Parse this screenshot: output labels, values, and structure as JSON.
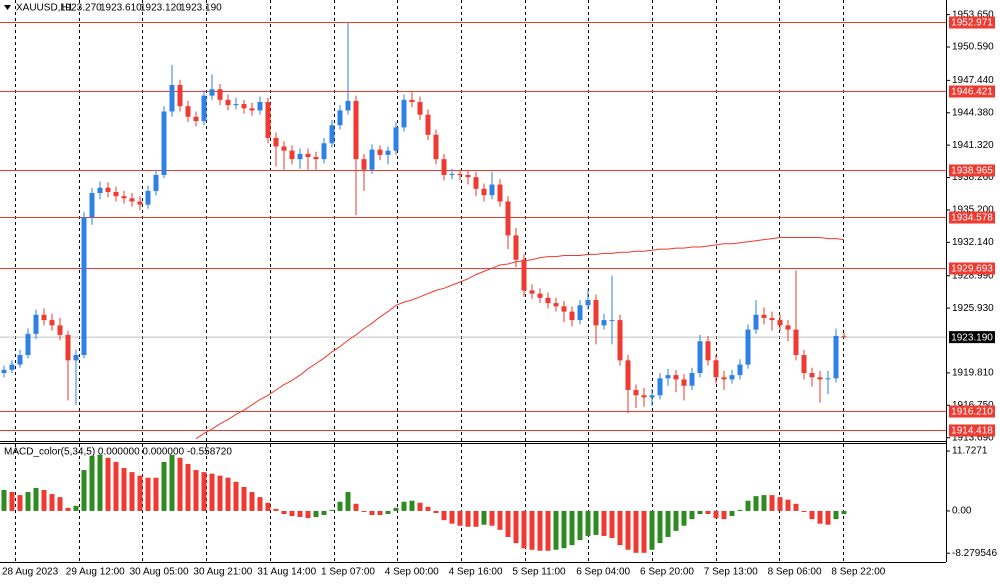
{
  "chart_data": [
    {
      "type": "candlestick",
      "header_symbol": "XAUUSD,H1",
      "header_values": [
        "1923.270",
        "1923.610",
        "1923.120",
        "1923.190"
      ],
      "up_color": "#2f80e4",
      "down_color": "#ee3a30",
      "candles": [
        [
          1919.8,
          1920.5,
          1919.4,
          1920.1
        ],
        [
          1920.1,
          1921.0,
          1919.8,
          1920.6
        ],
        [
          1920.6,
          1922.0,
          1920.3,
          1921.5
        ],
        [
          1921.5,
          1924.0,
          1921.2,
          1923.5
        ],
        [
          1923.5,
          1925.8,
          1923.0,
          1925.3
        ],
        [
          1925.3,
          1925.9,
          1924.3,
          1924.8
        ],
        [
          1924.8,
          1925.4,
          1923.8,
          1924.3
        ],
        [
          1924.3,
          1925.0,
          1922.9,
          1923.4
        ],
        [
          1923.4,
          1923.8,
          1917.2,
          1921.0
        ],
        [
          1921.0,
          1922.0,
          1916.8,
          1921.5
        ],
        [
          1921.5,
          1935.0,
          1921.2,
          1934.5
        ],
        [
          1934.5,
          1937.3,
          1933.8,
          1936.8
        ],
        [
          1936.8,
          1937.9,
          1936.2,
          1937.3
        ],
        [
          1937.3,
          1937.8,
          1936.4,
          1936.9
        ],
        [
          1936.9,
          1937.4,
          1936.0,
          1936.5
        ],
        [
          1936.5,
          1937.0,
          1935.8,
          1936.3
        ],
        [
          1936.3,
          1936.8,
          1935.5,
          1936.0
        ],
        [
          1936.0,
          1936.5,
          1935.2,
          1935.7
        ],
        [
          1935.7,
          1937.5,
          1935.3,
          1937.0
        ],
        [
          1937.0,
          1939.0,
          1936.6,
          1938.5
        ],
        [
          1938.5,
          1945.0,
          1938.2,
          1944.5
        ],
        [
          1944.5,
          1948.9,
          1944.0,
          1947.0
        ],
        [
          1947.0,
          1947.5,
          1944.5,
          1945.0
        ],
        [
          1945.0,
          1945.5,
          1943.5,
          1944.0
        ],
        [
          1944.0,
          1944.5,
          1943.1,
          1943.6
        ],
        [
          1943.6,
          1946.5,
          1943.2,
          1946.0
        ],
        [
          1946.0,
          1948.0,
          1945.6,
          1946.6
        ],
        [
          1946.6,
          1947.1,
          1945.1,
          1945.6
        ],
        [
          1945.6,
          1946.1,
          1944.6,
          1945.1
        ],
        [
          1945.1,
          1945.8,
          1944.7,
          1945.2
        ],
        [
          1945.2,
          1945.6,
          1944.3,
          1944.8
        ],
        [
          1944.8,
          1945.3,
          1944.1,
          1944.6
        ],
        [
          1944.6,
          1945.9,
          1944.2,
          1945.4
        ],
        [
          1945.4,
          1945.8,
          1941.5,
          1942.0
        ],
        [
          1942.0,
          1942.5,
          1939.3,
          1941.2
        ],
        [
          1941.2,
          1941.7,
          1939.0,
          1940.8
        ],
        [
          1940.8,
          1941.3,
          1939.5,
          1940.0
        ],
        [
          1940.0,
          1941.0,
          1939.1,
          1940.5
        ],
        [
          1940.5,
          1941.0,
          1939.0,
          1940.2
        ],
        [
          1940.2,
          1940.7,
          1939.0,
          1940.0
        ],
        [
          1940.0,
          1942.0,
          1939.6,
          1941.5
        ],
        [
          1941.5,
          1943.7,
          1941.1,
          1943.2
        ],
        [
          1943.2,
          1945.1,
          1942.8,
          1944.6
        ],
        [
          1944.6,
          1952.9,
          1944.2,
          1945.5
        ],
        [
          1945.5,
          1946.0,
          1934.7,
          1940.0
        ],
        [
          1940.0,
          1940.5,
          1937.0,
          1939.0
        ],
        [
          1939.0,
          1941.4,
          1938.6,
          1940.9
        ],
        [
          1940.9,
          1941.3,
          1939.9,
          1940.4
        ],
        [
          1940.4,
          1941.2,
          1939.5,
          1940.8
        ],
        [
          1940.8,
          1943.5,
          1940.4,
          1943.0
        ],
        [
          1943.0,
          1946.1,
          1942.6,
          1945.6
        ],
        [
          1945.6,
          1946.3,
          1944.9,
          1945.4
        ],
        [
          1945.4,
          1945.9,
          1943.7,
          1944.2
        ],
        [
          1944.2,
          1944.7,
          1941.8,
          1942.3
        ],
        [
          1942.3,
          1942.8,
          1939.5,
          1940.0
        ],
        [
          1940.0,
          1940.5,
          1938.0,
          1938.5
        ],
        [
          1938.5,
          1939.1,
          1938.1,
          1938.6
        ],
        [
          1938.6,
          1939.0,
          1938.0,
          1938.5
        ],
        [
          1938.5,
          1939.0,
          1937.6,
          1938.3
        ],
        [
          1938.3,
          1938.8,
          1936.5,
          1937.2
        ],
        [
          1937.2,
          1937.7,
          1936.0,
          1936.6
        ],
        [
          1936.6,
          1938.8,
          1936.2,
          1937.6
        ],
        [
          1937.6,
          1938.1,
          1935.5,
          1936.0
        ],
        [
          1936.0,
          1936.5,
          1931.5,
          1932.8
        ],
        [
          1932.8,
          1933.5,
          1929.8,
          1930.5
        ],
        [
          1930.5,
          1931.0,
          1927.0,
          1927.6
        ],
        [
          1927.6,
          1928.2,
          1926.8,
          1927.3
        ],
        [
          1927.3,
          1927.8,
          1926.4,
          1926.9
        ],
        [
          1926.9,
          1927.4,
          1925.9,
          1926.4
        ],
        [
          1926.4,
          1926.9,
          1925.6,
          1926.1
        ],
        [
          1926.1,
          1926.6,
          1924.6,
          1925.6
        ],
        [
          1925.6,
          1926.1,
          1924.2,
          1924.8
        ],
        [
          1924.8,
          1926.7,
          1924.4,
          1926.2
        ],
        [
          1926.2,
          1927.6,
          1925.8,
          1926.7
        ],
        [
          1926.7,
          1927.2,
          1922.5,
          1924.3
        ],
        [
          1924.3,
          1925.4,
          1923.9,
          1924.8
        ],
        [
          1924.8,
          1929.0,
          1922.5,
          1924.8
        ],
        [
          1924.8,
          1925.3,
          1920.5,
          1921.0
        ],
        [
          1921.0,
          1921.5,
          1916.0,
          1918.2
        ],
        [
          1918.2,
          1918.7,
          1916.5,
          1917.7
        ],
        [
          1917.7,
          1918.4,
          1916.6,
          1917.5
        ],
        [
          1917.5,
          1918.3,
          1916.7,
          1917.7
        ],
        [
          1917.7,
          1919.8,
          1917.3,
          1919.3
        ],
        [
          1919.3,
          1920.2,
          1918.6,
          1919.6
        ],
        [
          1919.6,
          1920.1,
          1918.0,
          1919.2
        ],
        [
          1919.2,
          1919.7,
          1917.2,
          1918.6
        ],
        [
          1918.6,
          1920.3,
          1918.2,
          1919.8
        ],
        [
          1919.8,
          1923.4,
          1919.4,
          1922.8
        ],
        [
          1922.8,
          1923.3,
          1920.5,
          1921.0
        ],
        [
          1921.0,
          1921.5,
          1918.8,
          1919.4
        ],
        [
          1919.4,
          1920.0,
          1918.2,
          1919.2
        ],
        [
          1919.2,
          1920.1,
          1918.8,
          1919.6
        ],
        [
          1919.6,
          1921.1,
          1919.2,
          1920.6
        ],
        [
          1920.6,
          1924.4,
          1920.2,
          1923.9
        ],
        [
          1923.9,
          1926.7,
          1923.5,
          1925.3
        ],
        [
          1925.3,
          1926.0,
          1924.4,
          1925.0
        ],
        [
          1925.0,
          1925.6,
          1923.8,
          1924.8
        ],
        [
          1924.8,
          1925.3,
          1923.8,
          1924.3
        ],
        [
          1924.3,
          1924.8,
          1922.8,
          1923.9
        ],
        [
          1923.9,
          1929.5,
          1921.0,
          1921.5
        ],
        [
          1921.5,
          1922.0,
          1919.2,
          1919.8
        ],
        [
          1919.8,
          1920.3,
          1918.5,
          1919.4
        ],
        [
          1919.4,
          1920.0,
          1917.0,
          1919.2
        ],
        [
          1919.2,
          1920.0,
          1917.8,
          1919.3
        ],
        [
          1919.3,
          1924.0,
          1918.9,
          1923.3
        ],
        [
          1923.27,
          1923.61,
          1923.12,
          1923.19
        ]
      ],
      "ma": {
        "color": "#ee3a30",
        "values": [
          null,
          null,
          null,
          null,
          null,
          null,
          null,
          null,
          null,
          null,
          null,
          null,
          null,
          null,
          null,
          null,
          null,
          null,
          null,
          null,
          null,
          null,
          null,
          null,
          1913.6,
          1914.1,
          1914.5,
          1915.0,
          1915.4,
          1915.9,
          1916.3,
          1916.8,
          1917.3,
          1917.7,
          1918.2,
          1918.7,
          1919.1,
          1919.6,
          1920.2,
          1920.7,
          1921.2,
          1921.8,
          1922.3,
          1922.9,
          1923.4,
          1924.0,
          1924.5,
          1925.1,
          1925.6,
          1926.2,
          1926.5,
          1926.7,
          1927.0,
          1927.3,
          1927.6,
          1927.8,
          1928.1,
          1928.4,
          1928.7,
          1929.1,
          1929.4,
          1929.7,
          1930.0,
          1930.1,
          1930.3,
          1930.4,
          1930.5,
          1930.7,
          1930.8,
          1930.8,
          1930.9,
          1930.9,
          1930.9,
          1931.0,
          1931.0,
          1931.1,
          1931.1,
          1931.2,
          1931.2,
          1931.3,
          1931.3,
          1931.4,
          1931.5,
          1931.5,
          1931.6,
          1931.6,
          1931.7,
          1931.7,
          1931.8,
          1931.9,
          1932.0,
          1932.0,
          1932.1,
          1932.2,
          1932.3,
          1932.4,
          1932.5,
          1932.6,
          1932.6,
          1932.6,
          1932.6,
          1932.6,
          1932.6,
          1932.5,
          1932.5,
          1932.4
        ]
      },
      "levels": [
        1952.971,
        1946.421,
        1938.965,
        1934.578,
        1929.693,
        1916.21,
        1914.418
      ],
      "level_labels": [
        "1952.971",
        "1946.421",
        "1938.965",
        "1934.578",
        "1929.693",
        "1916.210",
        "1914.418"
      ],
      "level_color": "#ee3a30",
      "last_price": {
        "value": 1923.19,
        "label": "1923.190"
      },
      "ylim": [
        1913.38,
        1955.03
      ],
      "yticks": [
        {
          "value": 1953.65,
          "label": "1953.650"
        },
        {
          "value": 1950.59,
          "label": "1950.590"
        },
        {
          "value": 1947.44,
          "label": "1947.440"
        },
        {
          "value": 1944.38,
          "label": "1944.380"
        },
        {
          "value": 1941.32,
          "label": "1941.320"
        },
        {
          "value": 1938.26,
          "label": "1938.260"
        },
        {
          "value": 1935.2,
          "label": "1935.200"
        },
        {
          "value": 1932.14,
          "label": "1932.140"
        },
        {
          "value": 1928.99,
          "label": "1928.990"
        },
        {
          "value": 1925.93,
          "label": "1925.930"
        },
        {
          "value": 1919.81,
          "label": "1919.810"
        },
        {
          "value": 1916.75,
          "label": "1916.750"
        },
        {
          "value": 1913.69,
          "label": "1913.690"
        }
      ],
      "x_labels": [
        "28 Aug 2023",
        "29 Aug 12:00",
        "30 Aug 05:00",
        "30 Aug 21:00",
        "31 Aug 14:00",
        "1 Sep 07:00",
        "4 Sep 00:00",
        "4 Sep 16:00",
        "5 Sep 11:00",
        "6 Sep 04:00",
        "6 Sep 20:00",
        "7 Sep 13:00",
        "8 Sep 06:00",
        "8 Sep 22:00"
      ]
    },
    {
      "type": "bar",
      "title": "MACD_color(5,34,5) 0.000000 0.000000 -0.558720",
      "up_color": "#2e8b22",
      "down_color": "#ee3a30",
      "values": [
        4.1,
        3.7,
        3.1,
        3.7,
        4.5,
        4.1,
        3.3,
        2.7,
        0.6,
        1.0,
        8.0,
        10.8,
        11.0,
        10.4,
        9.6,
        8.4,
        7.6,
        6.9,
        6.5,
        6.5,
        9.6,
        11.0,
        10.4,
        9.2,
        8.0,
        7.6,
        7.3,
        6.9,
        6.5,
        5.7,
        4.7,
        3.7,
        2.7,
        1.6,
        0.4,
        -0.6,
        -1.0,
        -1.2,
        -1.4,
        -1.2,
        -0.8,
        0.2,
        1.8,
        3.7,
        1.4,
        -0.2,
        -0.8,
        -0.8,
        -0.6,
        0.6,
        1.8,
        2.0,
        1.6,
        0.8,
        -0.4,
        -1.8,
        -2.5,
        -2.9,
        -3.1,
        -3.1,
        -2.7,
        -2.9,
        -3.7,
        -5.1,
        -6.3,
        -7.3,
        -7.6,
        -7.8,
        -7.8,
        -7.6,
        -7.3,
        -6.7,
        -5.7,
        -4.9,
        -4.7,
        -4.9,
        -5.3,
        -6.7,
        -7.6,
        -8.2,
        -8.2,
        -7.6,
        -6.3,
        -5.1,
        -3.9,
        -2.9,
        -1.6,
        -0.6,
        -0.6,
        -1.4,
        -1.6,
        -1.0,
        0.2,
        2.0,
        2.9,
        3.1,
        3.1,
        2.7,
        2.2,
        1.4,
        -0.2,
        -1.6,
        -2.5,
        -2.7,
        -1.6,
        -0.6
      ],
      "ylim": [
        -10.0,
        13.3
      ],
      "yticks": [
        11.7271,
        {
          "value": 0,
          "label": "0.00"
        },
        -8.279546
      ]
    }
  ]
}
